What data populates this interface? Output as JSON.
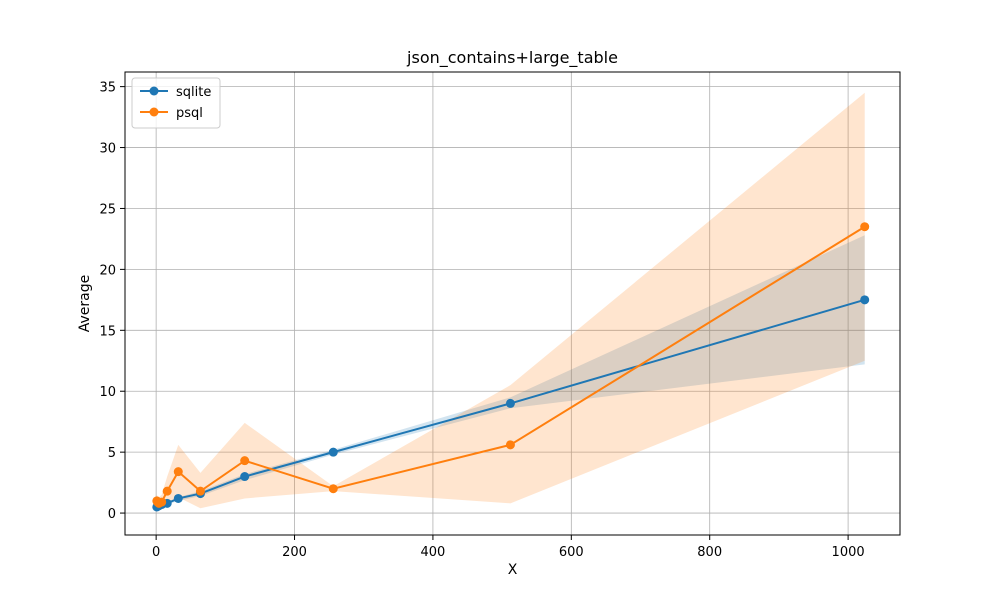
{
  "chart_data": {
    "type": "line",
    "title": "json_contains+large_table",
    "xlabel": "X",
    "ylabel": "Average",
    "xlim": [
      -45,
      1075
    ],
    "ylim": [
      -1.8,
      36.2
    ],
    "xticks": [
      0,
      200,
      400,
      600,
      800,
      1000
    ],
    "yticks": [
      0,
      5,
      10,
      15,
      20,
      25,
      30,
      35
    ],
    "grid": true,
    "legend": "top-left",
    "series": [
      {
        "name": "sqlite",
        "color": "#1f77b4",
        "x": [
          1,
          2,
          4,
          8,
          16,
          32,
          64,
          128,
          256,
          512,
          1024
        ],
        "y": [
          0.5,
          0.55,
          0.6,
          0.7,
          0.8,
          1.2,
          1.6,
          3.0,
          5.0,
          9.0,
          17.5
        ],
        "band_lower": [
          0.45,
          0.5,
          0.55,
          0.6,
          0.7,
          1.0,
          1.4,
          2.7,
          4.8,
          8.6,
          12.2
        ],
        "band_upper": [
          0.55,
          0.6,
          0.65,
          0.8,
          0.9,
          1.3,
          1.8,
          3.2,
          5.2,
          9.5,
          22.8
        ]
      },
      {
        "name": "psql",
        "color": "#ff7f0e",
        "x": [
          1,
          2,
          4,
          8,
          16,
          32,
          64,
          128,
          256,
          512,
          1024
        ],
        "y": [
          1.0,
          0.9,
          0.8,
          0.9,
          1.8,
          3.4,
          1.8,
          4.3,
          2.0,
          5.6,
          23.5
        ],
        "band_lower": [
          0.4,
          0.4,
          0.3,
          0.3,
          0.8,
          1.3,
          0.4,
          1.2,
          1.8,
          0.8,
          12.5
        ],
        "band_upper": [
          1.5,
          1.4,
          1.3,
          1.5,
          3.0,
          5.6,
          3.3,
          7.4,
          2.2,
          10.5,
          34.5
        ]
      }
    ]
  }
}
